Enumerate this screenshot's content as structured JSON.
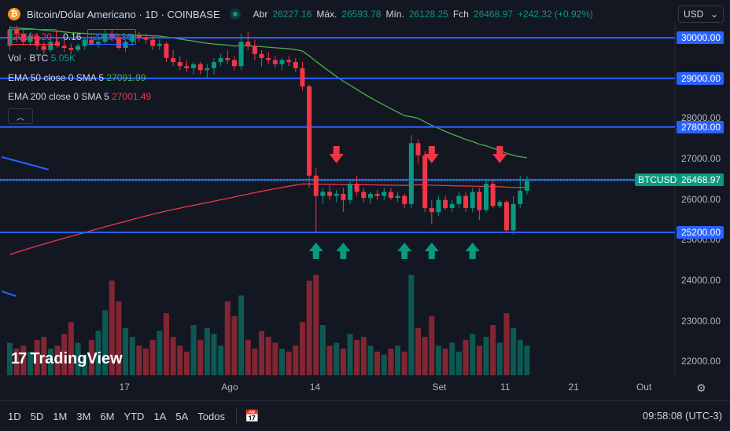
{
  "header": {
    "title": "Bitcoin/Dólar Americano · 1D · COINBASE",
    "open_label": "Abr",
    "open": "26227.16",
    "high_label": "Máx.",
    "high": "26593.78",
    "low_label": "Mín.",
    "low": "26128.25",
    "close_label": "Fch",
    "close": "26468.97",
    "change": "+242.32 (+0.92%)"
  },
  "quote": {
    "sell": "29186.20",
    "spread": "0.16",
    "buy": "29186.36"
  },
  "legend": {
    "volume": {
      "label": "Vol · BTC",
      "value": "5.05K"
    },
    "ema50": {
      "label": "EMA 50 close 0 SMA 5",
      "value": "27091.99"
    },
    "ema200": {
      "label": "EMA 200 close 0 SMA 5",
      "value": "27001.49"
    }
  },
  "currency": "USD",
  "ticker_label": "BTCUSD",
  "last_price": "26468.97",
  "colors": {
    "up": "#089981",
    "down": "#f23645",
    "level": "#2962ff",
    "ema50": "#4caf50",
    "ema200": "#f23645",
    "background": "#131722"
  },
  "logo_text": "TradingView",
  "ranges": [
    "1D",
    "5D",
    "1M",
    "3M",
    "6M",
    "YTD",
    "1A",
    "5A",
    "Todos"
  ],
  "clock": "09:58:08 (UTC-3)",
  "chart_data": {
    "type": "candlestick",
    "symbol": "BTCUSD",
    "y_range": [
      21600,
      30350
    ],
    "y_ticks": [
      22000,
      23000,
      24000,
      25000,
      26000,
      27000,
      28000,
      29000,
      30000
    ],
    "x_ticks": [
      {
        "label": "17",
        "index": 17
      },
      {
        "label": "Ago",
        "index": 32
      },
      {
        "label": "14",
        "index": 45
      },
      {
        "label": "Set",
        "index": 63
      },
      {
        "label": "11",
        "index": 73
      },
      {
        "label": "21",
        "index": 83
      },
      {
        "label": "Out",
        "index": 93
      }
    ],
    "levels": [
      30000,
      29000,
      27800,
      26500,
      25200
    ],
    "candles": [
      [
        29800,
        30300,
        29700,
        30200,
        2
      ],
      [
        30200,
        30300,
        29900,
        30100,
        2
      ],
      [
        30100,
        30250,
        29800,
        29900,
        2
      ],
      [
        29900,
        30150,
        29800,
        30050,
        2
      ],
      [
        30050,
        30100,
        29700,
        29800,
        2
      ],
      [
        29800,
        29900,
        29600,
        29700,
        2
      ],
      [
        29700,
        30000,
        29650,
        29900,
        2
      ],
      [
        29900,
        30000,
        29750,
        29800,
        2
      ],
      [
        29800,
        29950,
        29650,
        29750,
        2
      ],
      [
        29750,
        29850,
        29600,
        29700,
        2
      ],
      [
        29700,
        29850,
        29650,
        29800,
        2
      ],
      [
        29800,
        30000,
        29700,
        29950,
        2
      ],
      [
        29950,
        30050,
        29800,
        29850,
        2
      ],
      [
        29850,
        30000,
        29750,
        29900,
        2
      ],
      [
        29900,
        30200,
        29850,
        30100,
        2
      ],
      [
        30100,
        30200,
        29900,
        30000,
        2
      ],
      [
        30000,
        30100,
        29700,
        29750,
        2
      ],
      [
        29750,
        29950,
        29650,
        29900,
        2
      ],
      [
        29900,
        30100,
        29800,
        30050,
        2
      ],
      [
        30050,
        30150,
        29900,
        30000,
        2
      ],
      [
        30000,
        30100,
        29850,
        29950,
        2
      ],
      [
        29950,
        30050,
        29700,
        29800,
        2
      ],
      [
        29800,
        29950,
        29700,
        29850,
        2
      ],
      [
        29850,
        29900,
        29400,
        29500,
        2
      ],
      [
        29500,
        29700,
        29300,
        29400,
        2
      ],
      [
        29400,
        29550,
        29200,
        29300,
        2
      ],
      [
        29300,
        29450,
        29150,
        29250,
        2
      ],
      [
        29250,
        29400,
        29100,
        29350,
        2
      ],
      [
        29350,
        29400,
        29100,
        29200,
        2
      ],
      [
        29200,
        29350,
        29000,
        29250,
        2
      ],
      [
        29250,
        29500,
        29100,
        29400,
        2
      ],
      [
        29400,
        29600,
        29300,
        29500,
        2
      ],
      [
        29500,
        29700,
        29350,
        29450,
        2
      ],
      [
        29450,
        29550,
        29200,
        29300,
        2
      ],
      [
        29300,
        30100,
        29200,
        29900,
        2
      ],
      [
        29900,
        30150,
        29700,
        29800,
        2
      ],
      [
        29800,
        29950,
        29450,
        29600,
        2
      ],
      [
        29600,
        29700,
        29300,
        29500,
        2
      ],
      [
        29500,
        29650,
        29350,
        29450,
        2
      ],
      [
        29450,
        29550,
        29250,
        29350,
        2
      ],
      [
        29350,
        29500,
        29200,
        29450,
        2
      ],
      [
        29450,
        29550,
        29300,
        29400,
        2
      ],
      [
        29400,
        29500,
        29150,
        29250,
        2
      ],
      [
        29250,
        29400,
        28700,
        28800,
        2
      ],
      [
        28800,
        28850,
        26300,
        26600,
        2
      ],
      [
        26600,
        26800,
        25200,
        26100,
        2
      ],
      [
        26100,
        26300,
        25900,
        26200,
        2
      ],
      [
        26200,
        26350,
        26000,
        26100,
        2
      ],
      [
        26100,
        26250,
        25950,
        26150,
        2
      ],
      [
        26150,
        26300,
        25700,
        26000,
        2
      ],
      [
        26000,
        26500,
        25900,
        26400,
        2
      ],
      [
        26400,
        26600,
        26100,
        26200,
        2
      ],
      [
        26200,
        26300,
        25950,
        26050,
        2
      ],
      [
        26050,
        26200,
        25900,
        26150,
        2
      ],
      [
        26150,
        26250,
        26000,
        26100,
        2
      ],
      [
        26100,
        26300,
        26000,
        26200,
        2
      ],
      [
        26200,
        26300,
        26000,
        26050,
        2
      ],
      [
        26050,
        26200,
        25950,
        26100,
        2
      ],
      [
        26100,
        26150,
        25800,
        25900,
        2
      ],
      [
        25900,
        27600,
        25800,
        27400,
        2
      ],
      [
        27400,
        27500,
        26900,
        27100,
        2
      ],
      [
        27100,
        27200,
        25700,
        25800,
        2
      ],
      [
        25800,
        26000,
        25400,
        25700,
        2
      ],
      [
        25700,
        26100,
        25600,
        26000,
        2
      ],
      [
        26000,
        26100,
        25750,
        25800,
        2
      ],
      [
        25800,
        26000,
        25700,
        25900,
        2
      ],
      [
        25900,
        26200,
        25800,
        26100,
        2
      ],
      [
        26100,
        26200,
        25700,
        25800,
        2
      ],
      [
        25800,
        26300,
        25700,
        26200,
        2
      ],
      [
        26200,
        26300,
        25500,
        25750,
        2
      ],
      [
        25750,
        26500,
        25700,
        26400,
        2
      ],
      [
        26400,
        26500,
        25800,
        25850,
        2
      ],
      [
        25850,
        26000,
        25800,
        25950,
        2
      ],
      [
        25950,
        26000,
        25200,
        25250,
        2
      ],
      [
        25250,
        26100,
        25150,
        25900,
        2
      ],
      [
        25900,
        26600,
        25800,
        26227
      ],
      [
        26227.16,
        26593.78,
        26128.25,
        26468.97
      ]
    ],
    "volume": [
      1.1,
      0.9,
      1.0,
      0.8,
      1.2,
      1.3,
      0.9,
      1.0,
      1.4,
      1.8,
      1.1,
      0.7,
      1.2,
      1.5,
      2.2,
      3.2,
      2.5,
      1.6,
      1.3,
      1.0,
      0.9,
      1.2,
      1.5,
      2.1,
      1.3,
      1.0,
      0.8,
      1.7,
      1.2,
      1.6,
      1.4,
      1.0,
      2.5,
      2.0,
      2.7,
      1.2,
      0.9,
      1.5,
      1.3,
      1.1,
      0.9,
      0.8,
      1.0,
      1.8,
      3.2,
      3.4,
      1.7,
      1.0,
      1.1,
      0.9,
      1.4,
      1.2,
      1.3,
      1.0,
      0.8,
      0.7,
      0.9,
      1.0,
      0.8,
      3.4,
      1.6,
      1.3,
      2.0,
      1.0,
      0.9,
      1.1,
      0.8,
      1.2,
      1.4,
      1.0,
      1.3,
      1.7,
      1.1,
      2.1,
      1.6,
      1.2,
      1.0
    ],
    "arrows_down_at": [
      48,
      62,
      72
    ],
    "arrows_up_at": [
      45,
      49,
      58,
      62,
      68
    ]
  }
}
